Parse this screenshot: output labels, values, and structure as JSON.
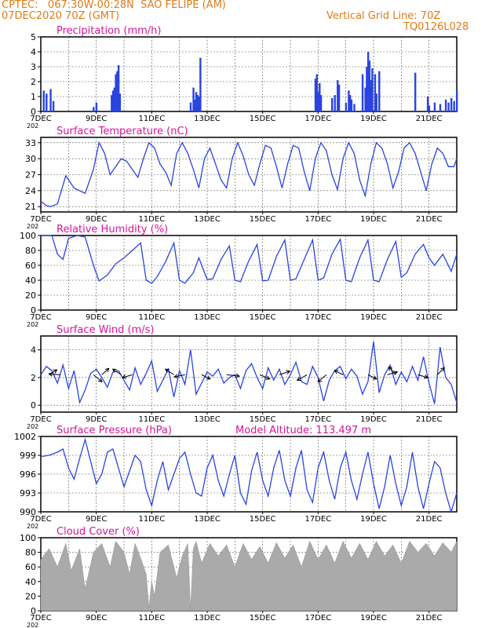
{
  "header": {
    "line1": "CPTEC:   067:30W-00:28N  SAO FELIPE (AM)",
    "line2": "07DEC2020 70Z (GMT)",
    "right1": "Vertical Grid Line: 70Z",
    "right2": "TQ0126L028"
  },
  "colors": {
    "header": "#e07a14",
    "panel_title": "#d6149a",
    "line": "#2a44e0",
    "cloud": "#aaaaaa",
    "axis": "#000000"
  },
  "x_axis": {
    "ticks": [
      {
        "label": "7DEC",
        "day": 7
      },
      {
        "label": "9DEC",
        "day": 9
      },
      {
        "label": "11DEC",
        "day": 11
      },
      {
        "label": "13DEC",
        "day": 13
      },
      {
        "label": "15DEC",
        "day": 15
      },
      {
        "label": "17DEC",
        "day": 17
      },
      {
        "label": "19DEC",
        "day": 19
      },
      {
        "label": "21DEC",
        "day": 21
      }
    ],
    "day_range": [
      7,
      22
    ],
    "year_stub": "202"
  },
  "panels": {
    "precip": {
      "title": "Precipitation (mm/h)"
    },
    "temp": {
      "title": "Surface Temperature (nC)"
    },
    "rh": {
      "title": "Relative Humidity (%)"
    },
    "wind": {
      "title": "Surface Wind (m/s)"
    },
    "pres": {
      "title": "Surface Pressure (hPa)",
      "extra": "Model Altitude: 113.497 m"
    },
    "cloud": {
      "title": "Cloud Cover (%)"
    }
  },
  "chart_data": [
    {
      "type": "bar",
      "name": "precip",
      "title": "Precipitation (mm/h)",
      "ylim": [
        0,
        5
      ],
      "yticks": [
        0,
        1,
        2,
        3,
        4,
        5
      ],
      "x_day": [
        7.1,
        7.2,
        7.35,
        7.45,
        8.9,
        9.0,
        9.55,
        9.6,
        9.65,
        9.7,
        9.75,
        9.8,
        9.85,
        12.4,
        12.5,
        12.55,
        12.6,
        12.65,
        12.7,
        12.75,
        16.9,
        16.95,
        17.0,
        17.05,
        17.1,
        17.5,
        17.6,
        17.7,
        17.75,
        18.0,
        18.1,
        18.15,
        18.2,
        18.3,
        18.6,
        18.7,
        18.75,
        18.8,
        18.85,
        18.9,
        18.95,
        19.05,
        19.1,
        19.2,
        20.5,
        20.95,
        21.0,
        21.2,
        21.4,
        21.6,
        21.7,
        21.8,
        21.9,
        22.0
      ],
      "values": [
        1.4,
        1.2,
        1.5,
        0.7,
        0.3,
        0.6,
        1.1,
        1.4,
        1.6,
        2.5,
        2.7,
        3.1,
        1.2,
        0.6,
        1.6,
        0.8,
        1.3,
        1.1,
        1.0,
        3.6,
        2.2,
        2.5,
        1.3,
        1.9,
        1.1,
        0.9,
        1.1,
        2.1,
        1.8,
        0.6,
        1.4,
        1.1,
        0.8,
        0.5,
        2.5,
        1.6,
        3.0,
        4.0,
        3.4,
        2.1,
        2.9,
        2.5,
        1.2,
        2.7,
        2.6,
        1.0,
        0.4,
        0.6,
        0.5,
        0.8,
        0.6,
        0.9,
        0.7,
        1.4
      ]
    },
    {
      "type": "line",
      "name": "temp",
      "title": "Surface Temperature (nC)",
      "ylim": [
        20,
        34
      ],
      "yticks": [
        21,
        24,
        27,
        30,
        33
      ],
      "x_day": [
        7.0,
        7.2,
        7.35,
        7.6,
        7.9,
        8.2,
        8.6,
        8.9,
        9.1,
        9.3,
        9.5,
        9.7,
        9.9,
        10.1,
        10.3,
        10.5,
        10.7,
        10.9,
        11.1,
        11.3,
        11.5,
        11.7,
        11.9,
        12.1,
        12.3,
        12.5,
        12.7,
        12.9,
        13.1,
        13.3,
        13.5,
        13.7,
        13.9,
        14.1,
        14.3,
        14.5,
        14.7,
        14.9,
        15.1,
        15.3,
        15.5,
        15.7,
        15.9,
        16.1,
        16.3,
        16.5,
        16.7,
        16.9,
        17.1,
        17.3,
        17.5,
        17.7,
        17.9,
        18.1,
        18.3,
        18.5,
        18.7,
        18.9,
        19.1,
        19.3,
        19.5,
        19.7,
        19.9,
        20.1,
        20.3,
        20.5,
        20.7,
        20.9,
        21.1,
        21.3,
        21.5,
        21.7,
        21.9,
        22.0
      ],
      "values": [
        22,
        21.2,
        21,
        21.5,
        26.8,
        24.5,
        23.5,
        28,
        33,
        31,
        27,
        28.5,
        30,
        29.5,
        28,
        26.5,
        30,
        33,
        32,
        29,
        27.5,
        25,
        31,
        33,
        31,
        28,
        24.5,
        30,
        32,
        29,
        26,
        24.5,
        30,
        33,
        30.5,
        27,
        25,
        29,
        32.5,
        32,
        28.5,
        24.5,
        29,
        32.5,
        32,
        27.5,
        24,
        30,
        33,
        31.5,
        27,
        24.2,
        30,
        33,
        31,
        26,
        23,
        29,
        33,
        32,
        29,
        24.5,
        27.5,
        32,
        33,
        31,
        27.5,
        24,
        29,
        32,
        31,
        28.5,
        28.5,
        30
      ]
    },
    {
      "type": "line",
      "name": "rh",
      "title": "Relative Humidity (%)",
      "ylim": [
        0,
        100
      ],
      "yticks": [
        0,
        20,
        40,
        60,
        80,
        100
      ],
      "x_day": [
        7.0,
        7.4,
        7.6,
        7.8,
        8.0,
        8.3,
        8.6,
        8.9,
        9.1,
        9.4,
        9.7,
        10.0,
        10.3,
        10.6,
        10.8,
        11.0,
        11.2,
        11.5,
        11.8,
        12.0,
        12.2,
        12.5,
        12.7,
        13.0,
        13.2,
        13.5,
        13.8,
        14.0,
        14.2,
        14.5,
        14.8,
        15.0,
        15.2,
        15.5,
        15.8,
        16.0,
        16.2,
        16.5,
        16.8,
        17.0,
        17.2,
        17.5,
        17.8,
        18.0,
        18.2,
        18.5,
        18.8,
        19.0,
        19.2,
        19.5,
        19.8,
        20.0,
        20.2,
        20.5,
        20.8,
        21.0,
        21.2,
        21.5,
        21.8,
        22.0
      ],
      "values": [
        100,
        100,
        75,
        68,
        96,
        100,
        98,
        60,
        39,
        47,
        62,
        70,
        80,
        90,
        40,
        36,
        45,
        65,
        90,
        40,
        36,
        50,
        70,
        41,
        42,
        68,
        86,
        40,
        38,
        66,
        88,
        39,
        40,
        72,
        94,
        40,
        42,
        68,
        94,
        40,
        43,
        75,
        95,
        40,
        38,
        70,
        94,
        40,
        38,
        68,
        92,
        44,
        50,
        75,
        88,
        70,
        60,
        75,
        52,
        75
      ]
    },
    {
      "type": "line",
      "name": "wind",
      "title": "Surface Wind (m/s)",
      "ylim": [
        -0.5,
        5
      ],
      "yticks": [
        0,
        2,
        4
      ],
      "x_day": [
        7.0,
        7.2,
        7.4,
        7.6,
        7.8,
        8.0,
        8.2,
        8.4,
        8.6,
        8.8,
        9.0,
        9.2,
        9.4,
        9.6,
        9.8,
        10.0,
        10.2,
        10.4,
        10.6,
        10.8,
        11.0,
        11.2,
        11.4,
        11.6,
        11.8,
        12.0,
        12.2,
        12.4,
        12.6,
        12.8,
        13.0,
        13.2,
        13.4,
        13.6,
        13.8,
        14.0,
        14.2,
        14.4,
        14.6,
        14.8,
        15.0,
        15.2,
        15.4,
        15.6,
        15.8,
        16.0,
        16.2,
        16.4,
        16.6,
        16.8,
        17.0,
        17.2,
        17.4,
        17.6,
        17.8,
        18.0,
        18.2,
        18.4,
        18.6,
        18.8,
        19.0,
        19.2,
        19.4,
        19.6,
        19.8,
        20.0,
        20.2,
        20.4,
        20.6,
        20.8,
        21.0,
        21.2,
        21.4,
        21.6,
        21.8,
        22.0
      ],
      "values": [
        2.2,
        2.8,
        2.5,
        1.6,
        2.9,
        1.2,
        2.5,
        0.2,
        1.1,
        2.3,
        2.6,
        2.0,
        1.3,
        2.4,
        2.5,
        1.8,
        1.1,
        2.7,
        1.5,
        2.3,
        3.2,
        1.0,
        1.8,
        2.6,
        0.6,
        2.5,
        1.5,
        4.0,
        0.8,
        1.6,
        2.4,
        2.1,
        2.6,
        1.6,
        2.0,
        2.2,
        1.2,
        2.5,
        3.0,
        2.0,
        1.2,
        2.7,
        1.8,
        2.6,
        1.5,
        2.2,
        3.1,
        1.7,
        1.5,
        2.8,
        2.0,
        0.3,
        1.8,
        2.5,
        2.8,
        1.9,
        2.6,
        2.1,
        0.8,
        1.7,
        4.6,
        0.9,
        2.2,
        2.9,
        1.5,
        2.4,
        1.7,
        2.8,
        1.8,
        3.5,
        1.6,
        0.1,
        4.2,
        2.0,
        1.5,
        0.2
      ],
      "arrows": [
        {
          "day": 7.3,
          "u": 0.55,
          "v": 0.35
        },
        {
          "day": 7.7,
          "u": -0.8,
          "v": 0.05
        },
        {
          "day": 8.9,
          "u": 0.6,
          "v": -0.5
        },
        {
          "day": 9.2,
          "u": 0.5,
          "v": 0.45
        },
        {
          "day": 9.9,
          "u": -0.6,
          "v": 0.4
        },
        {
          "day": 10.3,
          "u": -0.7,
          "v": -0.2
        },
        {
          "day": 11.8,
          "u": -0.6,
          "v": 0.4
        },
        {
          "day": 12.2,
          "u": -0.75,
          "v": -0.15
        },
        {
          "day": 12.8,
          "u": 0.6,
          "v": -0.3
        },
        {
          "day": 13.7,
          "u": 0.9,
          "v": -0.1
        },
        {
          "day": 14.9,
          "u": 0.7,
          "v": -0.3
        },
        {
          "day": 15.6,
          "u": 0.75,
          "v": 0.25
        },
        {
          "day": 16.6,
          "u": -0.7,
          "v": -0.4
        },
        {
          "day": 17.3,
          "u": -0.6,
          "v": -0.5
        },
        {
          "day": 17.9,
          "u": -0.6,
          "v": 0.3
        },
        {
          "day": 18.8,
          "u": 0.6,
          "v": -0.3
        },
        {
          "day": 19.5,
          "u": 0.7,
          "v": 0.2
        },
        {
          "day": 19.8,
          "u": -0.5,
          "v": 0.55
        },
        {
          "day": 20.6,
          "u": 0.7,
          "v": -0.2
        },
        {
          "day": 21.3,
          "u": 0.5,
          "v": 0.5
        }
      ]
    },
    {
      "type": "line",
      "name": "pres",
      "title": "Surface Pressure (hPa)",
      "ylim": [
        990,
        1002
      ],
      "yticks": [
        990,
        993,
        996,
        999,
        1002
      ],
      "x_day": [
        7.0,
        7.3,
        7.6,
        7.8,
        8.0,
        8.2,
        8.4,
        8.6,
        8.8,
        9.0,
        9.2,
        9.4,
        9.6,
        9.8,
        10.0,
        10.2,
        10.4,
        10.6,
        10.8,
        11.0,
        11.2,
        11.4,
        11.6,
        11.8,
        12.0,
        12.2,
        12.4,
        12.6,
        12.8,
        13.0,
        13.2,
        13.4,
        13.6,
        13.8,
        14.0,
        14.2,
        14.4,
        14.6,
        14.8,
        15.0,
        15.2,
        15.4,
        15.6,
        15.8,
        16.0,
        16.2,
        16.4,
        16.6,
        16.8,
        17.0,
        17.2,
        17.4,
        17.6,
        17.8,
        18.0,
        18.2,
        18.4,
        18.6,
        18.8,
        19.0,
        19.2,
        19.4,
        19.6,
        19.8,
        20.0,
        20.2,
        20.4,
        20.6,
        20.8,
        21.0,
        21.2,
        21.4,
        21.6,
        21.8,
        22.0
      ],
      "values": [
        998.8,
        999,
        999.5,
        1000,
        997,
        995.2,
        998.5,
        1001.5,
        998,
        994.5,
        996,
        999.5,
        1000,
        997,
        994,
        996.5,
        999,
        998,
        993.5,
        991,
        995,
        998,
        993.5,
        996,
        998.5,
        999.5,
        996,
        993,
        992.5,
        997,
        999,
        995,
        992.5,
        996,
        999,
        993,
        991.2,
        996.5,
        999.5,
        995,
        992.5,
        997,
        999.8,
        995,
        992.5,
        997,
        999.8,
        993.5,
        991.5,
        997,
        999.5,
        995,
        992,
        997,
        999.5,
        995,
        992,
        996,
        999.5,
        994.5,
        990.5,
        994,
        999,
        994.5,
        991,
        994,
        999.5,
        994,
        990.5,
        994.5,
        998,
        997,
        993,
        990,
        993
      ]
    },
    {
      "type": "area",
      "name": "cloud",
      "title": "Cloud Cover (%)",
      "ylim": [
        0,
        100
      ],
      "yticks": [
        0,
        20,
        40,
        60,
        80,
        100
      ],
      "x_day": [
        7.0,
        7.3,
        7.6,
        7.9,
        8.1,
        8.4,
        8.6,
        8.9,
        9.2,
        9.5,
        9.7,
        10.0,
        10.2,
        10.4,
        10.6,
        10.8,
        10.9,
        11.0,
        11.1,
        11.3,
        11.6,
        11.9,
        12.1,
        12.3,
        12.4,
        12.5,
        12.6,
        12.8,
        13.1,
        13.4,
        13.7,
        14.0,
        14.3,
        14.6,
        14.9,
        15.2,
        15.5,
        15.8,
        16.1,
        16.4,
        16.7,
        17.0,
        17.3,
        17.6,
        17.9,
        18.2,
        18.5,
        18.8,
        19.1,
        19.4,
        19.7,
        20.0,
        20.3,
        20.6,
        20.9,
        21.2,
        21.5,
        21.8,
        22.0
      ],
      "values": [
        70,
        85,
        60,
        92,
        55,
        85,
        30,
        80,
        92,
        60,
        95,
        80,
        50,
        92,
        72,
        50,
        3,
        40,
        20,
        80,
        90,
        45,
        75,
        92,
        0,
        85,
        95,
        65,
        92,
        75,
        90,
        60,
        92,
        70,
        88,
        65,
        93,
        72,
        90,
        60,
        95,
        70,
        90,
        65,
        95,
        72,
        92,
        70,
        95,
        75,
        90,
        65,
        95,
        80,
        92,
        75,
        93,
        80,
        95
      ]
    }
  ]
}
